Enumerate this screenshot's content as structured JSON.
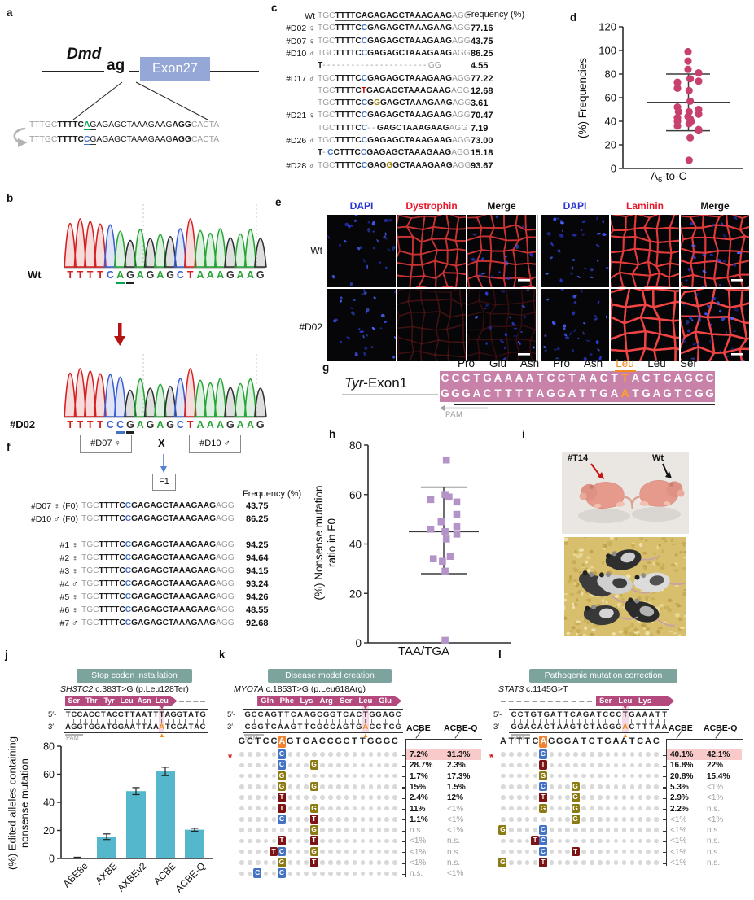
{
  "panel_labels": {
    "a": "a",
    "b": "b",
    "c": "c",
    "d": "d",
    "e": "e",
    "f": "f",
    "g": "g",
    "h": "h",
    "i": "i",
    "j": "j",
    "k": "k",
    "l": "l"
  },
  "misc": {
    "p5": "5′-",
    "p3": "3′-"
  },
  "colors": {
    "gray_seq": "#9b9b9b",
    "black_seq": "#1a1a1a",
    "blue_c": "#4472c4",
    "red_t": "#c00000",
    "olive_g": "#9b8300",
    "green_a": "#00a550",
    "orange": "#f28c1e",
    "scatter_d": "#c8416e",
    "scatter_h": "#b393c8",
    "bar_teal": "#55b7cb",
    "badge_bg": "#7ca39e",
    "aa_arrow": "#b3497c",
    "g_band": "#c882aa",
    "exon_box": "#95a7d6",
    "box_c": "#4472c4",
    "box_g": "#8c7a12",
    "box_t": "#7c1416",
    "dot": "#d9d9d9",
    "value_hl": "#f9caca"
  },
  "panel_a": {
    "gene_label": "Dmd",
    "splice_label": "ag",
    "exon_label": "Exon27",
    "seq_rows": [
      [
        [
          "TTTGC",
          "g"
        ],
        [
          "TTTTC",
          "k"
        ],
        [
          "A",
          "G",
          "#00a550"
        ],
        [
          "G",
          "n",
          "#333333"
        ],
        [
          "AGAGCTAAAGAAG",
          "n"
        ],
        [
          "AGG",
          "k"
        ],
        [
          "CACTA",
          "g"
        ]
      ],
      [
        [
          "TTTGC",
          "g"
        ],
        [
          "TTTTC",
          "k"
        ],
        [
          "C",
          "B",
          "#4472c4"
        ],
        [
          "G",
          "n",
          "#333333"
        ],
        [
          "AGAGCTAAAGAAG",
          "n"
        ],
        [
          "AGG",
          "k"
        ],
        [
          "CACTA",
          "g"
        ]
      ]
    ]
  },
  "panel_b": {
    "rows": [
      {
        "label": "Wt",
        "bases": "TTTTCAGAGAGCTAAAGAAG",
        "marks": [
          {
            "i": 5,
            "color": "#00a550"
          },
          {
            "i": 6,
            "color": "#222222"
          }
        ],
        "arrow_i": null
      },
      {
        "label": "#D02",
        "bases": "TTTTCCGAGAGCTAAAGAAG",
        "marks": [
          {
            "i": 5,
            "color": "#4472c4"
          },
          {
            "i": 6,
            "color": "#222222"
          }
        ],
        "arrow_i": 5
      }
    ],
    "base_colors": {
      "T": "#d42020",
      "C": "#3a5fd0",
      "A": "#27a437",
      "G": "#2f2f2f"
    }
  },
  "panel_c": {
    "freq_header": "Frequency (%)",
    "std_seq": [
      [
        "TGC",
        "g"
      ],
      [
        "TTTTC",
        "k"
      ],
      [
        "C",
        "B"
      ],
      [
        "GAGAGCTAAAGAAG",
        "k"
      ],
      [
        "AGG",
        "g"
      ]
    ],
    "rows": [
      {
        "label": "Wt",
        "seq": [
          [
            "TGC",
            "g"
          ],
          [
            "TTTTCAGAGAGCTAAAGAAG",
            "k",
            "#555555"
          ],
          [
            "AGG",
            "g"
          ]
        ],
        "freq": ""
      },
      {
        "label": "#D02 ♀",
        "seq": "std",
        "freq": "77.16"
      },
      {
        "label": "#D07 ♀",
        "seq": "std",
        "freq": "43.75"
      },
      {
        "label": "#D10 ♂",
        "seq": "std",
        "freq": "86.25"
      },
      {
        "label": "",
        "seq": [
          [
            "T",
            "k"
          ],
          [
            "----------------------",
            "d"
          ],
          [
            "GG",
            "g"
          ]
        ],
        "freq": "4.55"
      },
      {
        "label": "#D17 ♂",
        "seq": "std",
        "freq": "77.22"
      },
      {
        "label": "",
        "seq": [
          [
            "TGC",
            "g"
          ],
          [
            "TTTTC",
            "k"
          ],
          [
            "T",
            "R"
          ],
          [
            "GAGAGCTAAAGAAG",
            "k"
          ],
          [
            "AGG",
            "g"
          ]
        ],
        "freq": "12.68"
      },
      {
        "label": "",
        "seq": [
          [
            "TGC",
            "g"
          ],
          [
            "TTTTC",
            "k"
          ],
          [
            "C",
            "B"
          ],
          [
            "G",
            "k"
          ],
          [
            "G",
            "O"
          ],
          [
            "GAGCTAAAGAAG",
            "k"
          ],
          [
            "AGG",
            "g"
          ]
        ],
        "freq": "3.61"
      },
      {
        "label": "#D21 ♀",
        "seq": "std",
        "freq": "70.47"
      },
      {
        "label": "",
        "seq": [
          [
            "TGC",
            "g"
          ],
          [
            "TTTTC",
            "k"
          ],
          [
            "C",
            "B"
          ],
          [
            "--",
            "d"
          ],
          [
            "GAGCTAAAGAAG",
            "k"
          ],
          [
            "AGG",
            "g"
          ]
        ],
        "freq": "7.19"
      },
      {
        "label": "#D26 ♂",
        "seq": "std",
        "freq": "73.00"
      },
      {
        "label": "",
        "seq": [
          [
            "T",
            "k"
          ],
          [
            "-",
            "d"
          ],
          [
            "C",
            "B"
          ],
          [
            "CTTTC",
            "k"
          ],
          [
            "C",
            "B"
          ],
          [
            "GAGAGCTAAAGAAG",
            "k"
          ],
          [
            "AGG",
            "g"
          ]
        ],
        "freq": "15.18"
      },
      {
        "label": "#D28 ♂",
        "seq": [
          [
            "TGC",
            "g"
          ],
          [
            "TTTTC",
            "k"
          ],
          [
            "C",
            "B"
          ],
          [
            "GAG",
            "k"
          ],
          [
            "G",
            "O"
          ],
          [
            "GCTAAAGAAG",
            "k"
          ],
          [
            "AGG",
            "g"
          ]
        ],
        "freq": "93.67"
      }
    ]
  },
  "panel_e": {
    "col_headers": [
      {
        "t": "DAPI"
      },
      {
        "t": "Dystrophin"
      },
      {
        "t": "Merge"
      },
      {
        "t": "DAPI"
      },
      {
        "t": "Laminin"
      },
      {
        "t": "Merge"
      }
    ],
    "row_labels": [
      "Wt",
      "#D02"
    ]
  },
  "panel_f": {
    "box1": "#D07 ♀",
    "cross": "X",
    "box2": "#D10 ♂",
    "f1": "F1",
    "freq_header": "Frequency (%)",
    "rows": [
      {
        "label": "#D07 ♀ (F0)",
        "freq": "43.75"
      },
      {
        "label": "#D10 ♂ (F0)",
        "freq": "86.25"
      },
      {
        "label": "#1 ♀",
        "freq": "94.25"
      },
      {
        "label": "#2 ♀",
        "freq": "94.64"
      },
      {
        "label": "#3 ♀",
        "freq": "94.15"
      },
      {
        "label": "#4 ♂",
        "freq": "93.24"
      },
      {
        "label": "#5 ♀",
        "freq": "94.26"
      },
      {
        "label": "#6 ♀",
        "freq": "48.55"
      },
      {
        "label": "#7 ♂",
        "freq": "92.68"
      }
    ]
  },
  "panel_g": {
    "label_italic": "Tyr",
    "label_rest": "-Exon1",
    "pam": "PAM",
    "aa": [
      "Pro",
      "Glu",
      "Asn",
      "Pro",
      "Asn",
      "Leu",
      "Leu",
      "Ser"
    ],
    "aa_orange_idx": 5,
    "top": "CCCTGAAAATCCTAACTTACTCAGCC",
    "bottom": "GGGACTTTTAGGATTGAATGAGTCGG",
    "orange_idx": 17
  },
  "panel_i": {
    "label_left": "#T14",
    "label_right": "Wt"
  },
  "editors": {
    "j": {
      "badge": "Stop codon installation",
      "gene_italic": "SH3TC2",
      "gene_rest": " c.383T>G (p.Leu128Ter)",
      "pam": "PAM",
      "aa": [
        "Ser",
        "Thr",
        "Tyr",
        "Leu",
        "Asn",
        "Leu"
      ],
      "top": "TCCACCTACCTTAATTTAGGTATG",
      "bottom": "AGGTGGATGGAATTAAATCCATAC",
      "mut_idx": 16
    },
    "k": {
      "badge": "Disease model creation",
      "gene_italic": "MYO7A",
      "gene_rest": " c.1853T>G (p.Leu618Arg)",
      "pam": "PAM",
      "aa": [
        "Gln",
        "Phe",
        "Lys",
        "Arg",
        "Ser",
        "Leu",
        "Glu"
      ],
      "top": "GCCAGTTCAAGCGGTCACTGGAGC",
      "bottom": "CGGTCAAGTTCGCCAGTGACCTCG",
      "mut_idx": 18
    },
    "l": {
      "badge": "Pathogenic mutation correction",
      "gene_italic": "STAT3",
      "gene_rest": " c.1145G>T",
      "pam": "PAM",
      "aa": [
        "Ser",
        "Leu",
        "Lys"
      ],
      "top": "CCTGTGATTCAGATCCCTGAAATT",
      "bottom": "GGACACTAAGTCTAGGGACTTTAA",
      "mut_idx": 17
    }
  },
  "outcome_tables": {
    "k": {
      "ref": "GCTCCAGTGACCGCTTGGGC",
      "ref_orange_idx": 5,
      "col1": "ACBE",
      "col2": "ACBE-Q",
      "rows": [
        {
          "edits": {
            "5": "C"
          },
          "v1": "7.2%",
          "v2": "31.3%",
          "hl": true,
          "star": true
        },
        {
          "edits": {
            "5": "C",
            "9": "G"
          },
          "v1": "28.7%",
          "v2": "2.3%"
        },
        {
          "edits": {
            "5": "G"
          },
          "v1": "1.7%",
          "v2": "17.3%"
        },
        {
          "edits": {
            "5": "G",
            "9": "G"
          },
          "v1": "15%",
          "v2": "1.5%"
        },
        {
          "edits": {
            "5": "T"
          },
          "v1": "2.4%",
          "v2": "12%"
        },
        {
          "edits": {
            "5": "T",
            "9": "G"
          },
          "v1": "11%",
          "v2": "<1%"
        },
        {
          "edits": {
            "5": "C",
            "9": "T"
          },
          "v1": "1.1%",
          "v2": "<1%"
        },
        {
          "edits": {
            "9": "G"
          },
          "v1": "n.s.",
          "v2": "<1%"
        },
        {
          "edits": {
            "5": "T",
            "9": "T"
          },
          "v1": "<1%",
          "v2": "n.s."
        },
        {
          "edits": {
            "4": "T",
            "5": "C",
            "9": "G"
          },
          "v1": "<1%",
          "v2": "n.s."
        },
        {
          "edits": {
            "5": "G",
            "9": "T"
          },
          "v1": "<1%",
          "v2": "n.s."
        },
        {
          "edits": {
            "2": "C",
            "5": "C"
          },
          "v1": "n.s.",
          "v2": "<1%"
        }
      ]
    },
    "l": {
      "ref": "ATTTCAGGGATCTGAATCAC",
      "ref_orange_idx": 5,
      "col1": "ACBE",
      "col2": "ACBE-Q",
      "rows": [
        {
          "edits": {
            "5": "C"
          },
          "v1": "40.1%",
          "v2": "42.1%",
          "hl": true,
          "star": true
        },
        {
          "edits": {
            "5": "T"
          },
          "v1": "16.8%",
          "v2": "22%"
        },
        {
          "edits": {
            "5": "G"
          },
          "v1": "20.8%",
          "v2": "15.4%"
        },
        {
          "edits": {
            "5": "C",
            "9": "G"
          },
          "v1": "5.3%",
          "v2": "<1%"
        },
        {
          "edits": {
            "5": "T",
            "9": "G"
          },
          "v1": "2.9%",
          "v2": "<1%"
        },
        {
          "edits": {
            "5": "G",
            "9": "G"
          },
          "v1": "2.2%",
          "v2": "n.s."
        },
        {
          "edits": {
            "9": "G"
          },
          "v1": "<1%",
          "v2": "<1%"
        },
        {
          "edits": {
            "0": "G",
            "5": "C"
          },
          "v1": "<1%",
          "v2": "n.s."
        },
        {
          "edits": {
            "4": "T",
            "5": "C"
          },
          "v1": "<1%",
          "v2": "n.s."
        },
        {
          "edits": {
            "5": "C",
            "9": "T"
          },
          "v1": "<1%",
          "v2": "n.s."
        },
        {
          "edits": {
            "0": "G",
            "5": "T"
          },
          "v1": "<1%",
          "v2": "n.s."
        }
      ]
    }
  },
  "chart_data": [
    {
      "id": "d",
      "type": "scatter",
      "marker": "circle",
      "color": "#c8416e",
      "ylabel": "(%) Frequencies",
      "xlabel_parts": [
        "A",
        "6",
        "-to-C"
      ],
      "ylim": [
        0,
        120
      ],
      "yticks": [
        0,
        20,
        40,
        60,
        80,
        100,
        120
      ],
      "points": [
        [
          99,
          0
        ],
        [
          91,
          0
        ],
        [
          84,
          0
        ],
        [
          81,
          1
        ],
        [
          76,
          0.2
        ],
        [
          74,
          1
        ],
        [
          73,
          -1
        ],
        [
          68,
          -1
        ],
        [
          66,
          0.1
        ],
        [
          57,
          0.2
        ],
        [
          52,
          -1
        ],
        [
          50,
          1
        ],
        [
          48,
          -0.9
        ],
        [
          48,
          0.1
        ],
        [
          46,
          1
        ],
        [
          44,
          0
        ],
        [
          43,
          -1
        ],
        [
          42,
          0.2
        ],
        [
          40,
          -1
        ],
        [
          40,
          0.3
        ],
        [
          38,
          0.1
        ],
        [
          36,
          -1
        ],
        [
          33,
          1
        ],
        [
          32,
          1
        ],
        [
          26,
          0.2
        ],
        [
          7,
          0.1
        ]
      ],
      "mean": 56,
      "err_low": 32,
      "err_high": 80
    },
    {
      "id": "h",
      "type": "scatter",
      "marker": "square",
      "color": "#b393c8",
      "ylabel_lines": [
        "(%) Nonsense mutation",
        "ratio in F0"
      ],
      "xlabel": "TAA/TGA",
      "ylim": [
        0,
        80
      ],
      "yticks": [
        0,
        20,
        40,
        60,
        80
      ],
      "points": [
        [
          74,
          0.2
        ],
        [
          60,
          0.1
        ],
        [
          59,
          0.4
        ],
        [
          58,
          -1
        ],
        [
          57,
          1
        ],
        [
          52,
          1
        ],
        [
          49,
          -0.2
        ],
        [
          47,
          1
        ],
        [
          46,
          -1
        ],
        [
          45,
          0.1
        ],
        [
          44,
          1
        ],
        [
          42,
          0.2
        ],
        [
          35,
          0.5
        ],
        [
          34,
          -0.8
        ],
        [
          33,
          -0.1
        ],
        [
          29,
          0.1
        ],
        [
          1,
          0.1
        ]
      ],
      "mean": 45,
      "err_low": 28,
      "err_high": 63
    },
    {
      "id": "j",
      "type": "bar",
      "color": "#55b7cb",
      "ylabel_lines": [
        "(%) Edited alleles containing",
        "nonsense mutation"
      ],
      "categories": [
        "ABE8e",
        "AXBE",
        "AXBEv2",
        "ACBE",
        "ACBE-Q"
      ],
      "values": [
        0.5,
        15.5,
        48,
        62,
        20.5
      ],
      "errors": [
        0.4,
        2,
        2.5,
        3,
        1
      ],
      "ylim": [
        0,
        80
      ],
      "yticks": [
        0,
        20,
        40,
        60,
        80
      ]
    }
  ]
}
